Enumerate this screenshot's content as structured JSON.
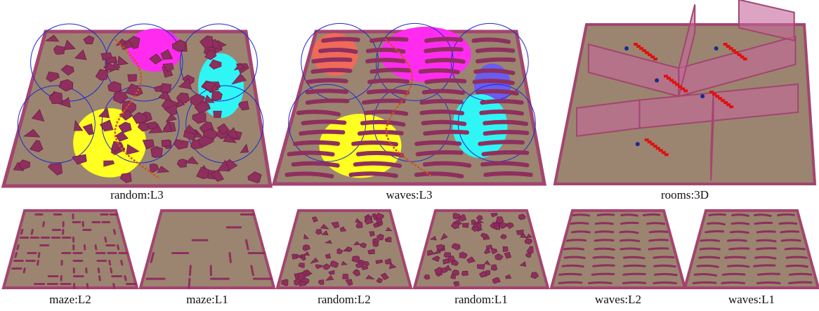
{
  "panels": [
    {
      "caption": "random:L3"
    },
    {
      "caption": "waves:L3"
    },
    {
      "caption": "rooms:3D"
    },
    {
      "caption": "maze:L2"
    },
    {
      "caption": "maze:L1"
    },
    {
      "caption": "random:L2"
    },
    {
      "caption": "random:L1"
    },
    {
      "caption": "waves:L2"
    },
    {
      "caption": "waves:L1"
    }
  ]
}
